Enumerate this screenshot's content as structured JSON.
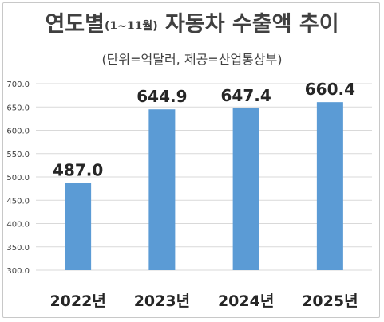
{
  "title": {
    "main": "연도별",
    "period": "(1~11월)",
    "rest": "자동차 수출액 추이"
  },
  "subtitle": "(단위=억달러, 제공=산업통상부)",
  "colors": {
    "bar": "#5b9bd5",
    "grid": "#d9d9d9",
    "text": "#404040",
    "label": "#262626"
  },
  "chart_data": {
    "type": "bar",
    "title": "연도별(1~11월) 자동차 수출액 추이",
    "subtitle": "(단위=억달러, 제공=산업통상부)",
    "categories": [
      "2022년",
      "2023년",
      "2024년",
      "2025년"
    ],
    "values": [
      487.0,
      644.9,
      647.4,
      660.4
    ],
    "data_labels": [
      "487.0",
      "644.9",
      "647.4",
      "660.4"
    ],
    "ylim": [
      300,
      700
    ],
    "ytick_step": 50,
    "yticks": [
      "300.0",
      "350.0",
      "400.0",
      "450.0",
      "500.0",
      "550.0",
      "600.0",
      "650.0",
      "700.0"
    ],
    "grid": true,
    "legend": "none"
  }
}
